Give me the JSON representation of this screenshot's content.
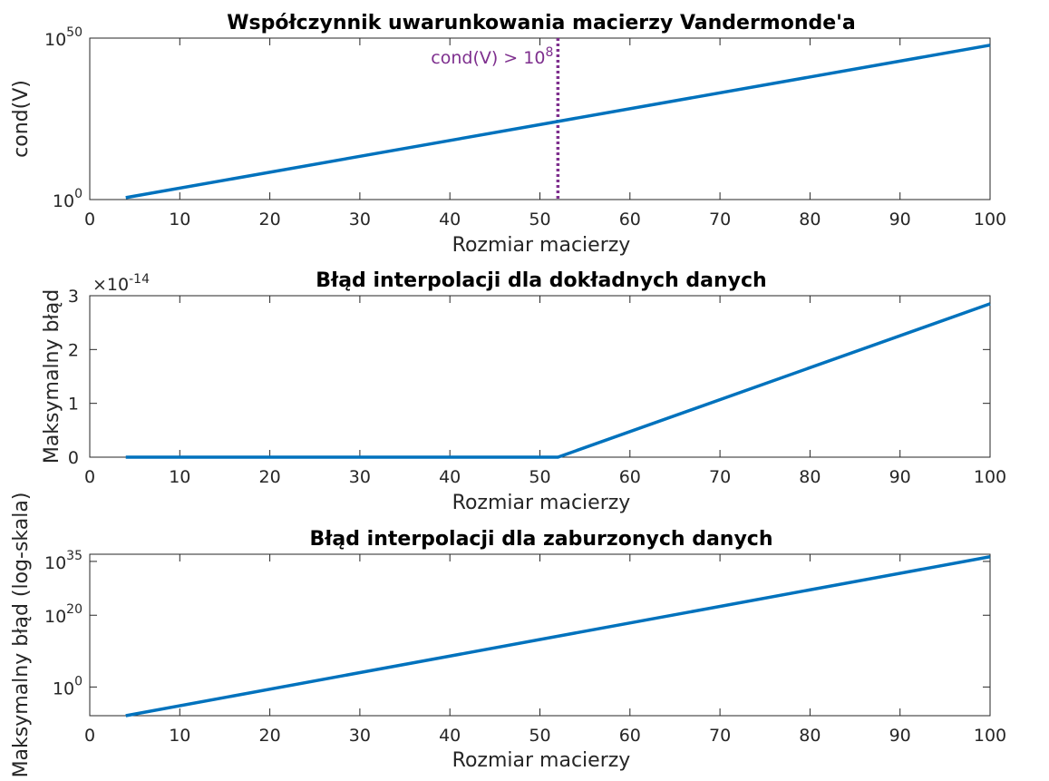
{
  "chart_data": [
    {
      "type": "line",
      "title": "Współczynnik uwarunkowania macierzy Vandermonde'a",
      "xlabel": "Rozmiar macierzy",
      "ylabel": "cond(V)",
      "yscale": "log",
      "xlim": [
        0,
        100
      ],
      "ylim_exp": [
        0,
        50
      ],
      "xticks": [
        "0",
        "10",
        "20",
        "30",
        "40",
        "50",
        "60",
        "70",
        "80",
        "90",
        "100"
      ],
      "yticks": [
        {
          "base": "10",
          "exp": "0"
        },
        {
          "base": "10",
          "exp": "50"
        }
      ],
      "x": [
        4,
        52,
        100
      ],
      "y_log10": [
        0.6,
        24.2,
        47.8
      ],
      "line_color": "#0072BD",
      "annotation": {
        "x": 52,
        "text": "cond(V) > 10",
        "sup": "8",
        "color": "#7E2F8E",
        "style": "dotted"
      }
    },
    {
      "type": "line",
      "title": "Błąd interpolacji dla dokładnych danych",
      "xlabel": "Rozmiar macierzy",
      "ylabel": "Maksymalny błąd",
      "yscale": "linear",
      "xlim": [
        0,
        100
      ],
      "ylim": [
        0,
        3
      ],
      "y_multiplier": {
        "text": "×10",
        "exp": "-14"
      },
      "xticks": [
        "0",
        "10",
        "20",
        "30",
        "40",
        "50",
        "60",
        "70",
        "80",
        "90",
        "100"
      ],
      "yticks": [
        "0",
        "1",
        "2",
        "3"
      ],
      "x": [
        4,
        52,
        100
      ],
      "y": [
        0,
        0,
        2.85
      ],
      "line_color": "#0072BD"
    },
    {
      "type": "line",
      "title": "Błąd interpolacji dla zaburzonych danych",
      "xlabel": "Rozmiar macierzy",
      "ylabel": "Maksymalny błąd (log-skala)",
      "yscale": "log",
      "xlim": [
        0,
        100
      ],
      "ylim_exp": [
        -8,
        37
      ],
      "xticks": [
        "0",
        "10",
        "20",
        "30",
        "40",
        "50",
        "60",
        "70",
        "80",
        "90",
        "100"
      ],
      "yticks": [
        {
          "base": "10",
          "exp": "0"
        },
        {
          "base": "10",
          "exp": "20"
        },
        {
          "base": "10",
          "exp": "35"
        }
      ],
      "x": [
        4,
        100
      ],
      "y_log10": [
        -8,
        36.3
      ],
      "line_color": "#0072BD"
    }
  ]
}
